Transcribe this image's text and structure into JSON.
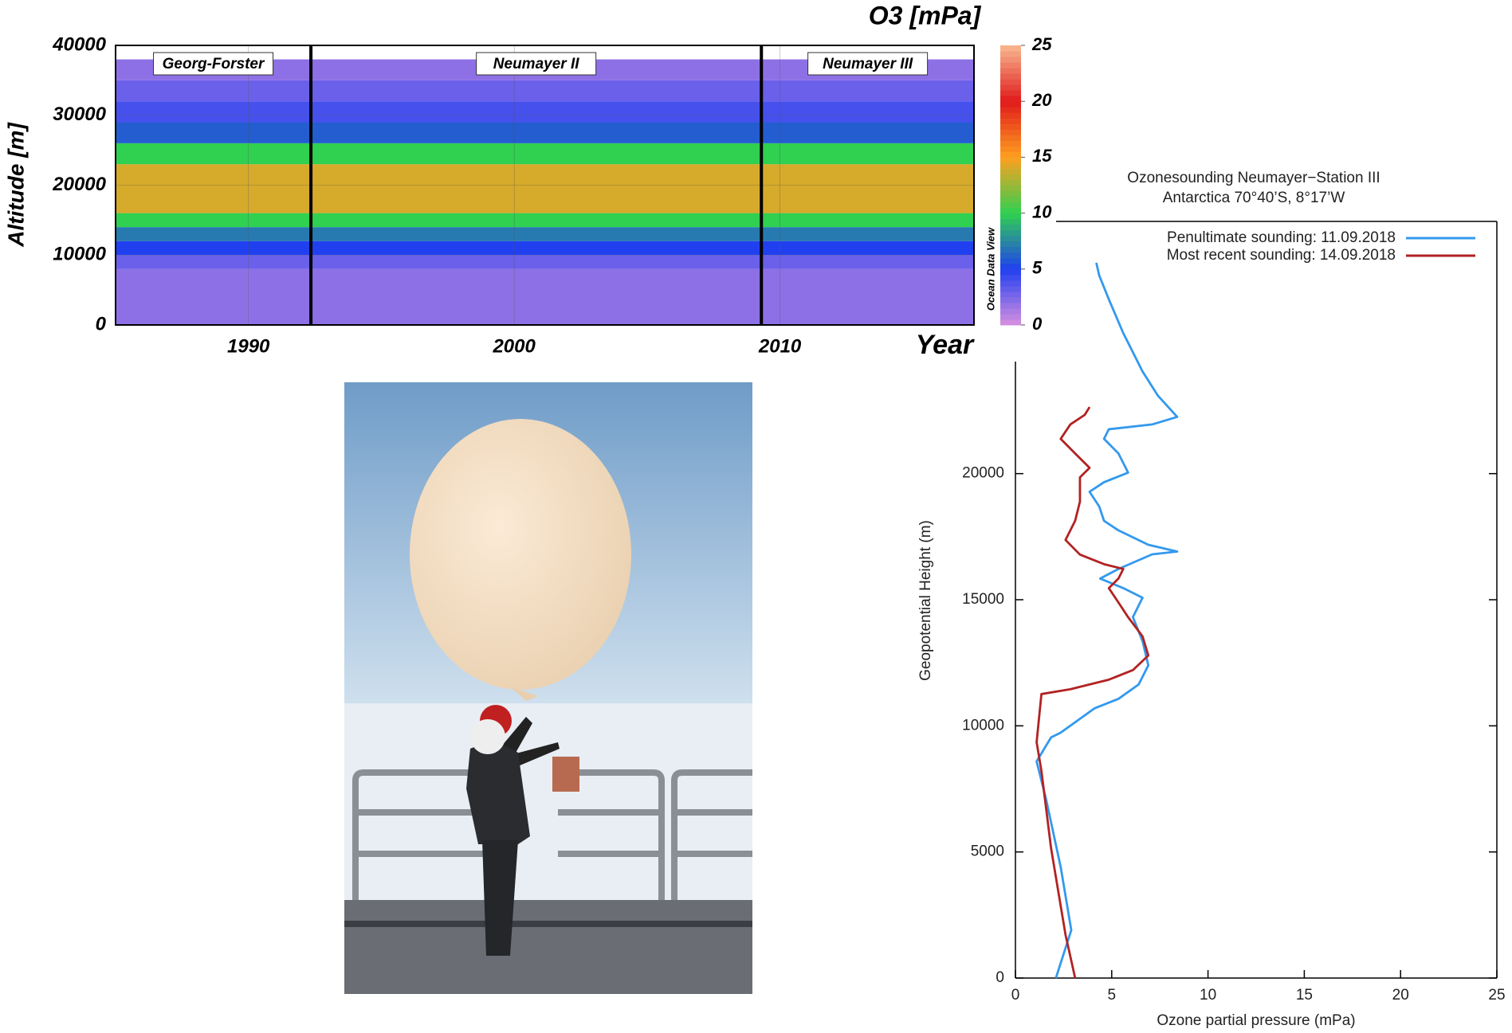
{
  "chart_data": [
    {
      "type": "heatmap",
      "title": "O3 [mPa]",
      "x_label": "Year",
      "y_label": "Altitude [m]",
      "source_label": "Ocean Data View",
      "xlim": [
        1985,
        2017.3
      ],
      "xticks": [
        1990,
        2000,
        2010
      ],
      "ylim": [
        0,
        40000
      ],
      "yticks": [
        0,
        10000,
        20000,
        30000,
        40000
      ],
      "grid": true,
      "altitude_bins": [
        0,
        8000,
        10000,
        12000,
        14000,
        16000,
        23000,
        26000,
        29000,
        32000,
        35000,
        38000
      ],
      "values": [
        2,
        3,
        5,
        7,
        10,
        14,
        10,
        6,
        4,
        3,
        2
      ],
      "colorbar_ticks": [
        0,
        5,
        10,
        15,
        20,
        25
      ],
      "colorscale": [
        "#d890e0",
        "#2040f0",
        "#30d050",
        "#ffa020",
        "#e01a1a",
        "#f8b890"
      ],
      "dividers": [
        1992.35,
        2009.3
      ],
      "stations": [
        "Georg-Forster",
        "Neumayer II",
        "Neumayer III"
      ]
    },
    {
      "type": "line",
      "title": "Ozonesounding Neumayer−Station III",
      "subtitle": "Antarctica 70°40’S, 8°17’W",
      "x_label": "Ozone partial pressure (mPa)",
      "y_label": "Geopotential Height (m)",
      "xlim": [
        0,
        25
      ],
      "xticks": [
        0,
        5,
        10,
        15,
        20,
        25
      ],
      "ylim": [
        0,
        30000
      ],
      "yticks": [
        0,
        5000,
        10000,
        15000,
        20000
      ],
      "legend": "upper right",
      "series": [
        {
          "name": "Penultimate sounding: 11.09.2018",
          "color": "#3399ee",
          "x": [
            2.1,
            2.9,
            2.35,
            1.6,
            1.1,
            1.85,
            2.35,
            4.1,
            5.35,
            6.4,
            6.9,
            6.6,
            6.1,
            6.6,
            5.6,
            4.4,
            5.35,
            7.1,
            8.4,
            6.9,
            5.35,
            4.6,
            4.35,
            3.85,
            4.6,
            5.85,
            5.35,
            4.6,
            4.85,
            7.1,
            8.4,
            7.4,
            6.6,
            5.6,
            4.85,
            4.35,
            4.2
          ],
          "values": [
            0,
            1900,
            4400,
            7060,
            8590,
            9540,
            9730,
            10690,
            11070,
            11640,
            12400,
            13360,
            14310,
            15080,
            15460,
            15840,
            16220,
            16800,
            16910,
            17180,
            17750,
            18130,
            18700,
            19280,
            19660,
            20040,
            20800,
            21380,
            21760,
            21950,
            22250,
            23090,
            24050,
            25570,
            26910,
            27860,
            28360
          ]
        },
        {
          "name": "Most recent sounding: 14.09.2018",
          "color": "#b22222",
          "x": [
            3.1,
            2.6,
            2.35,
            1.85,
            1.6,
            1.35,
            1.1,
            1.25,
            1.35,
            2.85,
            4.85,
            6.1,
            6.9,
            6.6,
            5.85,
            5.35,
            4.85,
            5.35,
            5.6,
            4.6,
            3.35,
            2.6,
            3.1,
            3.35,
            3.35,
            3.85,
            3.1,
            2.35,
            2.85,
            3.6,
            3.85
          ],
          "values": [
            0,
            1720,
            2860,
            5150,
            6680,
            8210,
            9350,
            10500,
            11260,
            11450,
            11830,
            12210,
            12790,
            13550,
            14310,
            14890,
            15460,
            15840,
            16220,
            16410,
            16790,
            17370,
            18130,
            18890,
            19850,
            20230,
            20800,
            21380,
            21950,
            22330,
            22640
          ]
        }
      ]
    }
  ]
}
